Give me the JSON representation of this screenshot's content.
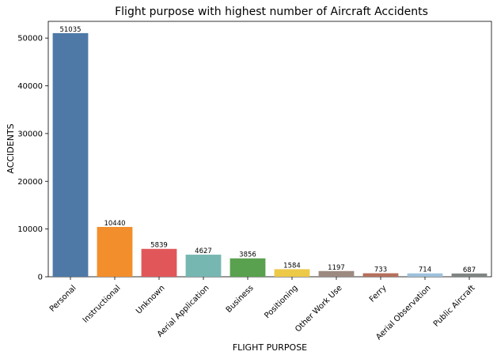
{
  "chart_data": {
    "type": "bar",
    "title": "Flight purpose with highest number of Aircraft Accidents",
    "xlabel": "FLIGHT PURPOSE",
    "ylabel": "ACCIDENTS",
    "categories": [
      "Personal",
      "Instructional",
      "Unknown",
      "Aerial Application",
      "Business",
      "Positioning",
      "Other Work Use",
      "Ferry",
      "Aerial Observation",
      "Public Aircraft"
    ],
    "values": [
      51035,
      10440,
      5839,
      4627,
      3856,
      1584,
      1197,
      733,
      714,
      687
    ],
    "value_labels": [
      "51035",
      "10440",
      "5839",
      "4627",
      "3856",
      "1584",
      "1197",
      "733",
      "714",
      "687"
    ],
    "colors": [
      "#4e79a7",
      "#f28e2b",
      "#e15759",
      "#76b7b2",
      "#59a14f",
      "#edc948",
      "#9c8a80",
      "#b5705c",
      "#9ec1dc",
      "#7f8583"
    ],
    "yticks": [
      0,
      10000,
      20000,
      30000,
      40000,
      50000
    ],
    "ytick_labels": [
      "0",
      "10000",
      "20000",
      "30000",
      "40000",
      "50000"
    ],
    "ylim": [
      0,
      53500
    ],
    "grid": false,
    "legend": "none"
  }
}
